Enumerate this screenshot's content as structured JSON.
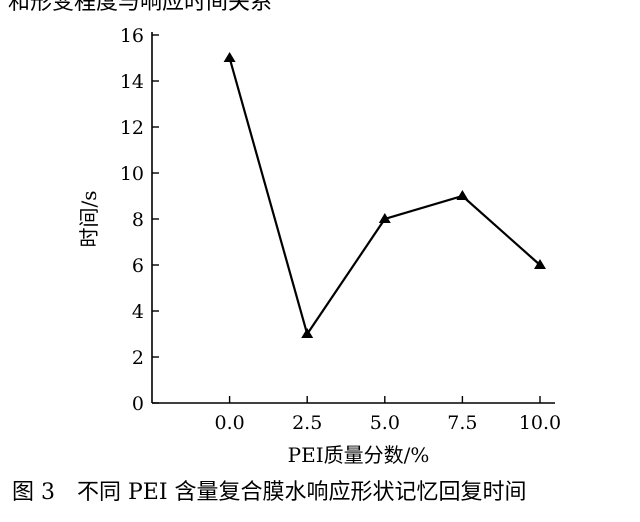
{
  "header_fragment": "和形变程度与响应时间关系",
  "caption": "图 3　不同 PEI 含量复合膜水响应形状记忆回复时间",
  "chart_data": {
    "type": "line",
    "title": "",
    "xlabel": "PEI质量分数/%",
    "ylabel": "时间/s",
    "x": [
      0.0,
      2.5,
      5.0,
      7.5,
      10.0
    ],
    "x_tick_labels": [
      "0.0",
      "2.5",
      "5.0",
      "7.5",
      "10.0"
    ],
    "y_ticks": [
      0,
      2,
      4,
      6,
      8,
      10,
      12,
      14,
      16
    ],
    "ylim": [
      0,
      16
    ],
    "xlim": [
      -2.5,
      10.0
    ],
    "series": [
      {
        "values": [
          15,
          3,
          8,
          9,
          6
        ],
        "marker": "triangle",
        "color": "#000000"
      }
    ],
    "grid": false
  }
}
